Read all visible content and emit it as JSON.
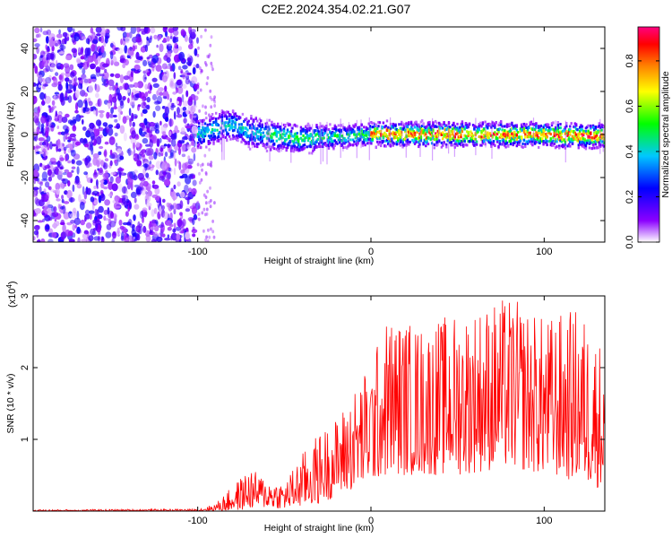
{
  "title": "C2E2.2024.354.02.21.G07",
  "colors": {
    "snr_line": "#ff0000",
    "axis": "#000000",
    "colormap": [
      "#ffffff",
      "#8b00ff",
      "#0000ff",
      "#00c8ff",
      "#00ff00",
      "#ffff00",
      "#ff8000",
      "#ff0000",
      "#ff0080"
    ]
  },
  "chart_data": [
    {
      "type": "heatmap",
      "xlabel": "Height of straight line (km)",
      "ylabel": "Frequency (Hz)",
      "xlim": [
        -195,
        135
      ],
      "ylim": [
        -50,
        50
      ],
      "x_ticks": [
        -100,
        0,
        100
      ],
      "y_ticks": [
        -40,
        -20,
        0,
        20,
        40
      ],
      "colorbar": {
        "label": "Normalized spectral amplitude",
        "range": [
          0,
          0.95
        ],
        "ticks": [
          0.0,
          0.2,
          0.4,
          0.6,
          0.8
        ]
      },
      "regions": [
        {
          "x_range": [
            -195,
            -100
          ],
          "description_value": 0.15
        },
        {
          "x_range": [
            -100,
            135
          ],
          "center_freq_hz": 0,
          "peak_value": 0.9
        }
      ],
      "center_track": [
        {
          "x": -100,
          "f": 0
        },
        {
          "x": -90,
          "f": 3
        },
        {
          "x": -80,
          "f": 5
        },
        {
          "x": -70,
          "f": 1
        },
        {
          "x": -60,
          "f": 0
        },
        {
          "x": -40,
          "f": -2
        },
        {
          "x": -20,
          "f": -1
        },
        {
          "x": 0,
          "f": 0
        },
        {
          "x": 50,
          "f": 0
        },
        {
          "x": 100,
          "f": 0
        },
        {
          "x": 135,
          "f": -1
        }
      ]
    },
    {
      "type": "line",
      "xlabel": "Height of straight line (km)",
      "ylabel": "SNR (10 * v/v)",
      "scale_label": "(x10",
      "scale_exp": "4",
      "xlim": [
        -195,
        135
      ],
      "ylim": [
        0,
        30000
      ],
      "x_ticks": [
        -100,
        0,
        100
      ],
      "y_ticks": [
        10000,
        20000,
        30000
      ],
      "y_tick_labels": [
        "1",
        "2",
        "3"
      ],
      "envelope": [
        {
          "x": -195,
          "lo": 0,
          "hi": 200
        },
        {
          "x": -100,
          "lo": 0,
          "hi": 300
        },
        {
          "x": -90,
          "lo": 0,
          "hi": 1000
        },
        {
          "x": -80,
          "lo": 0,
          "hi": 3500
        },
        {
          "x": -70,
          "lo": 300,
          "hi": 6000
        },
        {
          "x": -60,
          "lo": 500,
          "hi": 4500
        },
        {
          "x": -50,
          "lo": 300,
          "hi": 4000
        },
        {
          "x": -40,
          "lo": 500,
          "hi": 8000
        },
        {
          "x": -30,
          "lo": 1000,
          "hi": 11000
        },
        {
          "x": -20,
          "lo": 2000,
          "hi": 13000
        },
        {
          "x": -10,
          "lo": 3000,
          "hi": 17000
        },
        {
          "x": 0,
          "lo": 4000,
          "hi": 21000
        },
        {
          "x": 10,
          "lo": 5000,
          "hi": 27500
        },
        {
          "x": 30,
          "lo": 5000,
          "hi": 26000
        },
        {
          "x": 50,
          "lo": 5000,
          "hi": 28000
        },
        {
          "x": 80,
          "lo": 6000,
          "hi": 30000
        },
        {
          "x": 100,
          "lo": 5000,
          "hi": 27000
        },
        {
          "x": 120,
          "lo": 4000,
          "hi": 28500
        },
        {
          "x": 135,
          "lo": 3000,
          "hi": 23000
        }
      ]
    }
  ]
}
